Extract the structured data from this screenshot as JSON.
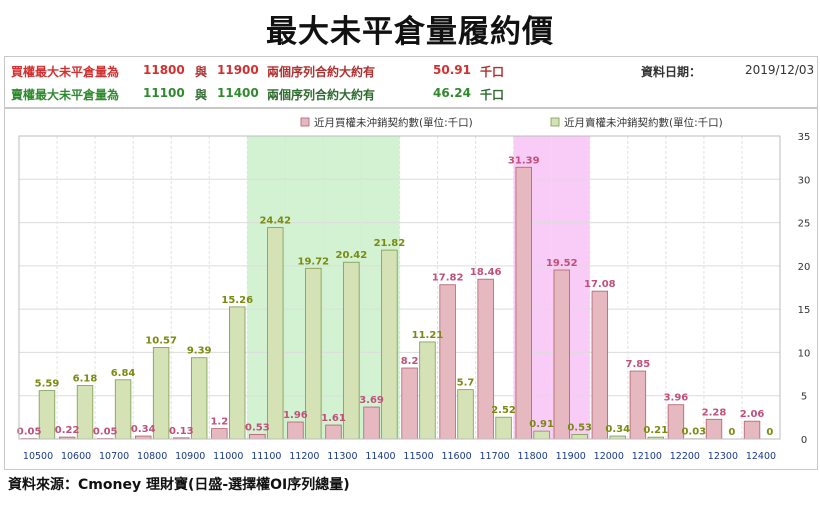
{
  "title": "最大未平倉量履約價",
  "info": {
    "call_row": {
      "label": "買權最大未平倉量為",
      "from": "11800",
      "and": "與",
      "to": "11900",
      "text": "兩個序列合約大約有",
      "value": "50.91",
      "unit": "千口"
    },
    "put_row": {
      "label": "賣權最大未平倉量為",
      "from": "11100",
      "and": "與",
      "to": "11400",
      "text": "兩個序列合約大約有",
      "value": "46.24",
      "unit": "千口"
    },
    "date_label": "資料日期：",
    "date_value": "2019/12/03"
  },
  "footer": "資料來源：Cmoney 理財寶(日盛-選擇權OI序列總量)",
  "colors": {
    "call_fill": "#e6b8c0",
    "call_stroke": "#b0606e",
    "call_label": "#c0507a",
    "put_fill": "#d4e2b6",
    "put_stroke": "#7a9a50",
    "put_label": "#7a8a10",
    "green_band": "#d2f2d2",
    "pink_band": "#f8ccf6",
    "axis_text": "#1a3a8a"
  },
  "chart_data": {
    "type": "bar",
    "categories": [
      "10500",
      "10600",
      "10700",
      "10800",
      "10900",
      "11000",
      "11100",
      "11200",
      "11300",
      "11400",
      "11500",
      "11600",
      "11700",
      "11800",
      "11900",
      "12000",
      "12100",
      "12200",
      "12300",
      "12400"
    ],
    "series": [
      {
        "name": "近月買權未沖銷契約數(單位:千口)",
        "values": [
          0.05,
          0.22,
          0.05,
          0.34,
          0.13,
          1.2,
          0.53,
          1.96,
          1.61,
          3.69,
          8.2,
          17.82,
          18.46,
          31.39,
          19.52,
          17.08,
          7.85,
          3.96,
          2.28,
          2.06
        ]
      },
      {
        "name": "近月賣權未沖銷契約數(單位:千口)",
        "values": [
          5.59,
          6.18,
          6.84,
          10.57,
          9.39,
          15.26,
          24.42,
          19.72,
          20.42,
          21.82,
          11.21,
          5.7,
          2.52,
          0.91,
          0.53,
          0.34,
          0.21,
          0.03,
          0,
          0
        ]
      }
    ],
    "data_labels": {
      "call": [
        "0.05",
        "0.22",
        "0.05",
        "0.34",
        "0.13",
        "1.2",
        "0.53",
        "1.96",
        "1.61",
        "3.69",
        "8.2",
        "17.82",
        "18.46",
        "31.39",
        "19.52",
        "17.08",
        "7.85",
        "3.96",
        "2.28",
        "2.06"
      ],
      "put": [
        "5.59",
        "6.18",
        "6.84",
        "10.57",
        "9.39",
        "15.26",
        "24.42",
        "19.72",
        "20.42",
        "21.82",
        "11.21",
        "5.7",
        "2.52",
        "0.91",
        "0.53",
        "0.34",
        "0.21",
        "0.03",
        "0",
        "0"
      ]
    },
    "highlight_ranges": [
      {
        "from": "11100",
        "to": "11400",
        "color": "green"
      },
      {
        "from": "11800",
        "to": "11900",
        "color": "pink"
      }
    ],
    "y_ticks": [
      0,
      5,
      10,
      15,
      20,
      25,
      30,
      35
    ],
    "ylim": [
      0,
      35
    ],
    "grid": true,
    "legend_position": "top-right"
  }
}
